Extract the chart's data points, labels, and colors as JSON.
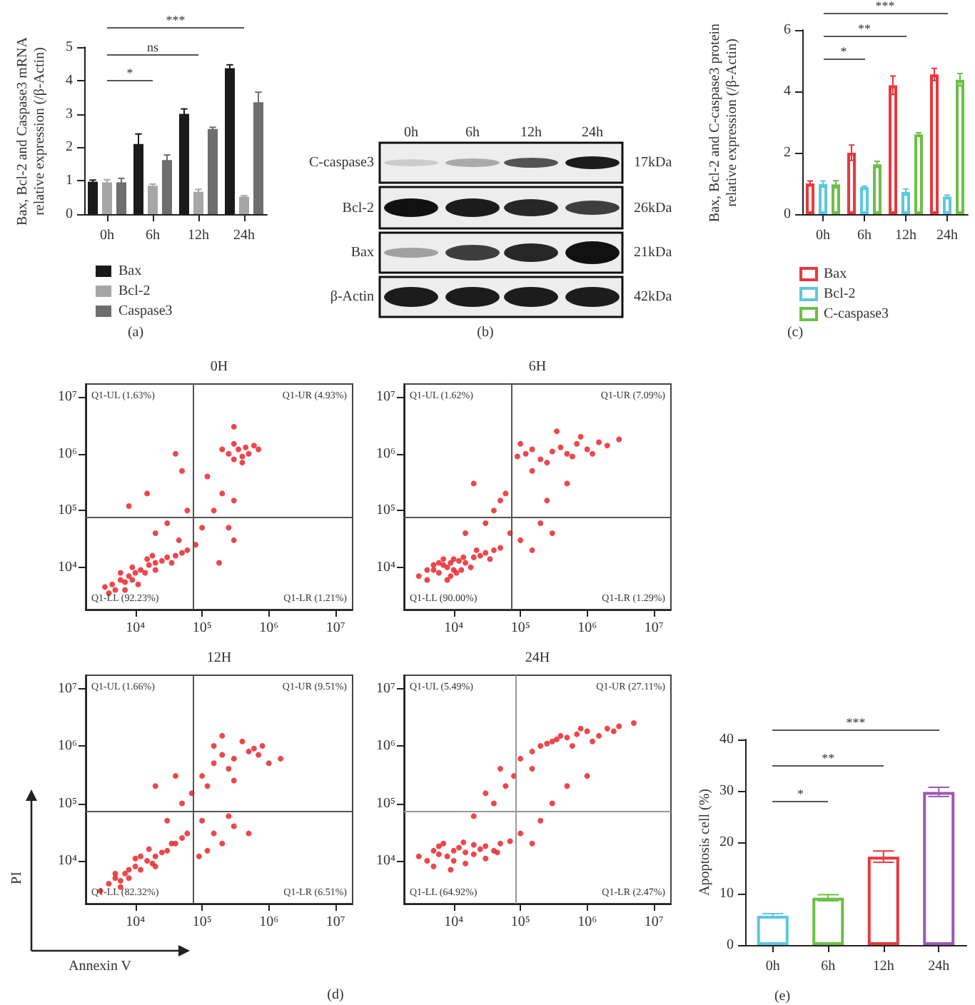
{
  "chart_data": [
    {
      "type": "bar",
      "subtitle": "(a)",
      "categories": [
        "0h",
        "6h",
        "12h",
        "24h"
      ],
      "series": [
        {
          "name": "Bax",
          "color": "#1a1a1a",
          "values": [
            0.97,
            2.1,
            3.0,
            4.37
          ],
          "errors": [
            0.05,
            0.3,
            0.15,
            0.1
          ]
        },
        {
          "name": "Bcl-2",
          "color": "#a6a6a6",
          "values": [
            0.95,
            0.85,
            0.67,
            0.52
          ],
          "errors": [
            0.08,
            0.05,
            0.07,
            0.03
          ]
        },
        {
          "name": "Caspase3",
          "color": "#6e6e6e",
          "values": [
            0.95,
            1.62,
            2.55,
            3.35
          ],
          "errors": [
            0.12,
            0.15,
            0.05,
            0.3
          ]
        }
      ],
      "ylabel": "Bax, Bcl-2 and Caspase3 mRNA relative expression (/β-Actin)",
      "ylim": [
        0,
        5
      ],
      "yticks": [
        0,
        1,
        2,
        3,
        4,
        5
      ],
      "legend": "bottom",
      "annotations": [
        "*",
        "ns",
        "***"
      ]
    },
    {
      "type": "other",
      "subtitle": "(b)",
      "annotations": [
        "0h",
        "6h",
        "12h",
        "24h",
        "C-caspase3",
        "Bcl-2",
        "Bax",
        "β-Actin",
        "17kDa",
        "26kDa",
        "21kDa",
        "42kDa"
      ]
    },
    {
      "type": "bar",
      "subtitle": "(c)",
      "categories": [
        "0h",
        "6h",
        "12h",
        "24h"
      ],
      "series": [
        {
          "name": "Bax",
          "color": "#e8383d",
          "values": [
            1.0,
            2.0,
            4.2,
            4.55
          ],
          "errors": [
            0.08,
            0.25,
            0.3,
            0.2
          ]
        },
        {
          "name": "Bcl-2",
          "color": "#5bc8e0",
          "values": [
            0.98,
            0.88,
            0.72,
            0.57
          ],
          "errors": [
            0.1,
            0.03,
            0.1,
            0.05
          ]
        },
        {
          "name": "C-caspase3",
          "color": "#6cbf45",
          "values": [
            0.97,
            1.62,
            2.6,
            4.38
          ],
          "errors": [
            0.12,
            0.1,
            0.05,
            0.2
          ]
        }
      ],
      "ylabel": "Bax, Bcl-2 and C-caspase3 protein relative expression (/β-Actin)",
      "ylim": [
        0,
        6
      ],
      "yticks": [
        0,
        2,
        4,
        6
      ],
      "legend": "bottom",
      "annotations": [
        "*",
        "**",
        "***"
      ]
    },
    {
      "type": "scatter",
      "title": "0H",
      "color": "#e8282b",
      "marker": "circle",
      "log": "xy",
      "xlim": [
        1800,
        18000000
      ],
      "ylim": [
        1800,
        17000000
      ],
      "xticks": [
        {
          "value": 10000,
          "label": "10⁴"
        },
        {
          "value": 100000,
          "label": "10⁵"
        },
        {
          "value": 1000000,
          "label": "10⁶"
        },
        {
          "value": 10000000,
          "label": "10⁷"
        }
      ],
      "yticks": [
        {
          "value": 10000,
          "label": "10⁴"
        },
        {
          "value": 100000,
          "label": "10⁵"
        },
        {
          "value": 1000000,
          "label": "10⁶"
        },
        {
          "value": 10000000,
          "label": "10⁷"
        }
      ],
      "ref_lines": [
        {
          "axis": "x",
          "value": 75000,
          "color": "#555555"
        },
        {
          "axis": "y",
          "value": 75000,
          "color": "#555555"
        }
      ],
      "annotations": [
        "Q1-UL (1.63%)",
        "Q1-UR (4.93%)",
        "Q1-LL (92.23%)",
        "Q1-LR (1.21%)"
      ],
      "x": [
        3500,
        4500,
        5000,
        6000,
        7000,
        8000,
        9000,
        10000,
        12000,
        14000,
        16000,
        20000,
        25000,
        30000,
        40000,
        50000,
        60000,
        6000,
        9000,
        15000,
        20000,
        11000,
        4000,
        7000,
        35000,
        18000,
        20000,
        30000,
        45000,
        60000,
        15000,
        50000,
        80000,
        100000,
        150000,
        200000,
        300000,
        120000,
        250000,
        8000,
        40000,
        250000,
        300000,
        350000,
        400000,
        450000,
        500000,
        600000,
        300000,
        400000,
        700000,
        200000,
        300000,
        300000,
        180000
      ],
      "values": [
        4500,
        5000,
        4000,
        6000,
        5500,
        7000,
        6000,
        8000,
        9000,
        8000,
        11000,
        12000,
        13000,
        15000,
        16000,
        18000,
        20000,
        8000,
        10000,
        14000,
        9000,
        5000,
        3500,
        4000,
        12000,
        16000,
        40000,
        60000,
        30000,
        100000,
        200000,
        500000,
        25000,
        50000,
        100000,
        200000,
        150000,
        400000,
        50000,
        120000,
        1000000,
        1000000,
        800000,
        1200000,
        900000,
        1300000,
        1000000,
        1400000,
        1500000,
        700000,
        1200000,
        1200000,
        3000000,
        30000,
        12000
      ]
    },
    {
      "type": "scatter",
      "title": "6H",
      "color": "#e8282b",
      "marker": "circle",
      "log": "xy",
      "xlim": [
        1800,
        18000000
      ],
      "ylim": [
        1800,
        17000000
      ],
      "xticks": [
        {
          "value": 10000,
          "label": "10⁴"
        },
        {
          "value": 100000,
          "label": "10⁵"
        },
        {
          "value": 1000000,
          "label": "10⁶"
        },
        {
          "value": 10000000,
          "label": "10⁷"
        }
      ],
      "yticks": [
        {
          "value": 10000,
          "label": "10⁴"
        },
        {
          "value": 100000,
          "label": "10⁵"
        },
        {
          "value": 1000000,
          "label": "10⁶"
        },
        {
          "value": 10000000,
          "label": "10⁷"
        }
      ],
      "ref_lines": [
        {
          "axis": "x",
          "value": 75000,
          "color": "#555555"
        },
        {
          "axis": "y",
          "value": 75000,
          "color": "#555555"
        }
      ],
      "annotations": [
        "Q1-UL (1.62%)",
        "Q1-UR (7.09%)",
        "Q1-LL (90.00%)",
        "Q1-LR (1.29%)"
      ],
      "x": [
        3000,
        4000,
        5000,
        6000,
        7000,
        8000,
        9000,
        10000,
        12000,
        15000,
        20000,
        25000,
        30000,
        40000,
        50000,
        5000,
        7000,
        9000,
        11000,
        14000,
        18000,
        6000,
        8000,
        13000,
        22000,
        35000,
        4000,
        10000,
        15000,
        30000,
        40000,
        60000,
        70000,
        20000,
        50000,
        100000,
        150000,
        200000,
        300000,
        250000,
        500000,
        90000,
        120000,
        150000,
        200000,
        300000,
        400000,
        500000,
        700000,
        1000000,
        1500000,
        2000000,
        3000000,
        100000,
        250000,
        600000,
        800000,
        1200000,
        350000,
        150000
      ],
      "values": [
        7000,
        6000,
        9000,
        8000,
        11000,
        10000,
        12000,
        9000,
        13000,
        12000,
        15000,
        16000,
        18000,
        20000,
        22000,
        11000,
        14000,
        7000,
        8000,
        15000,
        10000,
        12000,
        6000,
        9000,
        20000,
        14000,
        9000,
        14000,
        40000,
        60000,
        100000,
        200000,
        40000,
        300000,
        150000,
        30000,
        20000,
        60000,
        40000,
        150000,
        300000,
        900000,
        1000000,
        1200000,
        800000,
        1100000,
        1300000,
        1000000,
        1500000,
        1200000,
        1600000,
        1400000,
        1800000,
        1500000,
        700000,
        900000,
        2000000,
        1000000,
        2500000,
        500000
      ]
    },
    {
      "type": "scatter",
      "title": "12H",
      "subtitle": "(d)",
      "xlabel": "Annexin V",
      "ylabel": "PI",
      "color": "#e8282b",
      "marker": "circle",
      "log": "xy",
      "xlim": [
        1800,
        18000000
      ],
      "ylim": [
        1800,
        17000000
      ],
      "xticks": [
        {
          "value": 10000,
          "label": "10⁴"
        },
        {
          "value": 100000,
          "label": "10⁵"
        },
        {
          "value": 1000000,
          "label": "10⁶"
        },
        {
          "value": 10000000,
          "label": "10⁷"
        }
      ],
      "yticks": [
        {
          "value": 10000,
          "label": "10⁴"
        },
        {
          "value": 100000,
          "label": "10⁵"
        },
        {
          "value": 1000000,
          "label": "10⁶"
        },
        {
          "value": 10000000,
          "label": "10⁷"
        }
      ],
      "ref_lines": [
        {
          "axis": "x",
          "value": 75000,
          "color": "#555555"
        },
        {
          "axis": "y",
          "value": 75000,
          "color": "#555555"
        }
      ],
      "annotations": [
        "Q1-UL (1.66%)",
        "Q1-UR (9.51%)",
        "Q1-LL (82.32%)",
        "Q1-LR (6.51%)"
      ],
      "x": [
        3000,
        4000,
        5000,
        6000,
        7000,
        8000,
        10000,
        12000,
        15000,
        18000,
        20000,
        25000,
        30000,
        40000,
        50000,
        60000,
        5000,
        8000,
        12000,
        20000,
        35000,
        6000,
        10000,
        16000,
        30000,
        50000,
        70000,
        20000,
        40000,
        100000,
        150000,
        200000,
        300000,
        500000,
        700000,
        1000000,
        150000,
        250000,
        400000,
        600000,
        120000,
        200000,
        300000,
        800000,
        1500000,
        100000,
        150000,
        200000,
        300000,
        500000,
        120000,
        250000,
        90000
      ],
      "values": [
        3000,
        4000,
        5000,
        4500,
        6000,
        7000,
        8000,
        7000,
        10000,
        9000,
        12000,
        14000,
        15000,
        20000,
        25000,
        30000,
        6000,
        5000,
        12000,
        8000,
        20000,
        3500,
        11000,
        16000,
        50000,
        100000,
        150000,
        200000,
        300000,
        300000,
        500000,
        700000,
        600000,
        800000,
        700000,
        500000,
        1000000,
        400000,
        1200000,
        900000,
        200000,
        1500000,
        250000,
        1000000,
        600000,
        50000,
        30000,
        20000,
        40000,
        30000,
        15000,
        60000,
        12000
      ]
    },
    {
      "type": "scatter",
      "title": "24H",
      "color": "#e8282b",
      "marker": "circle",
      "log": "xy",
      "xlim": [
        1800,
        18000000
      ],
      "ylim": [
        1800,
        17000000
      ],
      "xticks": [
        {
          "value": 10000,
          "label": "10⁴"
        },
        {
          "value": 100000,
          "label": "10⁵"
        },
        {
          "value": 1000000,
          "label": "10⁶"
        },
        {
          "value": 10000000,
          "label": "10⁷"
        }
      ],
      "yticks": [
        {
          "value": 10000,
          "label": "10⁴"
        },
        {
          "value": 100000,
          "label": "10⁵"
        },
        {
          "value": 1000000,
          "label": "10⁶"
        },
        {
          "value": 10000000,
          "label": "10⁷"
        }
      ],
      "ref_lines": [
        {
          "axis": "x",
          "value": 83000,
          "color": "#999999"
        },
        {
          "axis": "y",
          "value": 75000,
          "color": "#999999"
        }
      ],
      "annotations": [
        "Q1-UL (5.49%)",
        "Q1-UR (27.11%)",
        "Q1-LL (64.92%)",
        "Q1-LR (2.47%)"
      ],
      "x": [
        3000,
        4000,
        5000,
        6000,
        8000,
        10000,
        12000,
        15000,
        20000,
        25000,
        30000,
        40000,
        50000,
        70000,
        5000,
        7000,
        10000,
        15000,
        20000,
        30000,
        45000,
        6000,
        9000,
        14000,
        20000,
        40000,
        60000,
        80000,
        50000,
        30000,
        100000,
        150000,
        200000,
        300000,
        400000,
        500000,
        700000,
        1000000,
        1500000,
        2000000,
        3000000,
        5000000,
        250000,
        350000,
        600000,
        800000,
        1200000,
        2500000,
        150000,
        100000,
        200000,
        300000,
        500000,
        1000000,
        150000
      ],
      "values": [
        12000,
        10000,
        15000,
        13000,
        12000,
        15000,
        17000,
        14000,
        13000,
        16000,
        18000,
        15000,
        20000,
        22000,
        8000,
        20000,
        10000,
        9000,
        19000,
        11000,
        14000,
        18000,
        7000,
        21000,
        60000,
        100000,
        200000,
        300000,
        400000,
        150000,
        600000,
        800000,
        1000000,
        1200000,
        1500000,
        1400000,
        1600000,
        1800000,
        1500000,
        2000000,
        2200000,
        2500000,
        1100000,
        1300000,
        1000000,
        2000000,
        1200000,
        1800000,
        400000,
        30000,
        50000,
        100000,
        200000,
        300000,
        20000
      ]
    },
    {
      "type": "bar",
      "subtitle": "(e)",
      "categories": [
        "0h",
        "6h",
        "12h",
        "24h"
      ],
      "values": [
        5.7,
        9.2,
        17.2,
        29.8
      ],
      "errors": [
        0.4,
        0.6,
        1.1,
        0.9
      ],
      "colors": [
        "#5bc8e0",
        "#6cbf45",
        "#e8383d",
        "#9b59b6"
      ],
      "ylabel": "Apoptosis cell (%)",
      "ylim": [
        0,
        40
      ],
      "yticks": [
        0,
        10,
        20,
        30,
        40
      ],
      "annotations": [
        "*",
        "**",
        "***"
      ]
    }
  ]
}
